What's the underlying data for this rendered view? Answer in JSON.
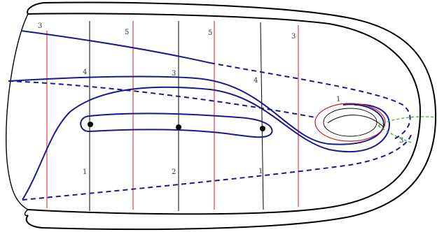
{
  "labels": {
    "top_3": "3",
    "top_5a": "5",
    "top_5b": "5",
    "top_3b": "3",
    "mid_4a": "4",
    "mid_3": "3",
    "mid_4b": "4",
    "bottom_1a": "1",
    "bottom_2": "2",
    "bottom_1b": "1",
    "ring_1": "1",
    "right_3": "3"
  },
  "colors": {
    "outline": "#000000",
    "curve": "#1a1a8c",
    "dashed": "#1a1a8c",
    "red_line": "#e03030",
    "black_line": "#000000",
    "ring": "#c02020",
    "green_dash": "#22aa22"
  }
}
